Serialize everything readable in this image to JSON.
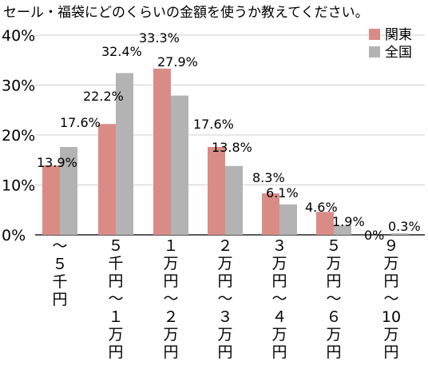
{
  "chart_data": {
    "type": "bar",
    "title": "セール・福袋にどのくらいの金額を使うか教えてください。",
    "xlabel": "",
    "ylabel": "",
    "ylim": [
      0,
      40
    ],
    "y_ticks": [
      "0%",
      "10%",
      "20%",
      "30%",
      "40%"
    ],
    "grid": true,
    "legend_position": "top-right",
    "categories": [
      "～５千円",
      "５千円～１万円",
      "１万円～２万円",
      "２万円～３万円",
      "３万円～４万円",
      "５万円～６万円",
      "９万円～10万円"
    ],
    "series": [
      {
        "name": "関東",
        "color": "#d98c86",
        "values": [
          13.9,
          22.2,
          33.3,
          17.6,
          8.3,
          4.6,
          0
        ],
        "labels": [
          "13.9%",
          "22.2%",
          "33.3%",
          "17.6%",
          "8.3%",
          "4.6%",
          "0%"
        ]
      },
      {
        "name": "全国",
        "color": "#b3b3b3",
        "values": [
          17.6,
          32.4,
          27.9,
          13.8,
          6.1,
          1.9,
          0.3
        ],
        "labels": [
          "17.6%",
          "32.4%",
          "27.9%",
          "13.8%",
          "6.1%",
          "1.9%",
          "0.3%"
        ]
      }
    ]
  }
}
